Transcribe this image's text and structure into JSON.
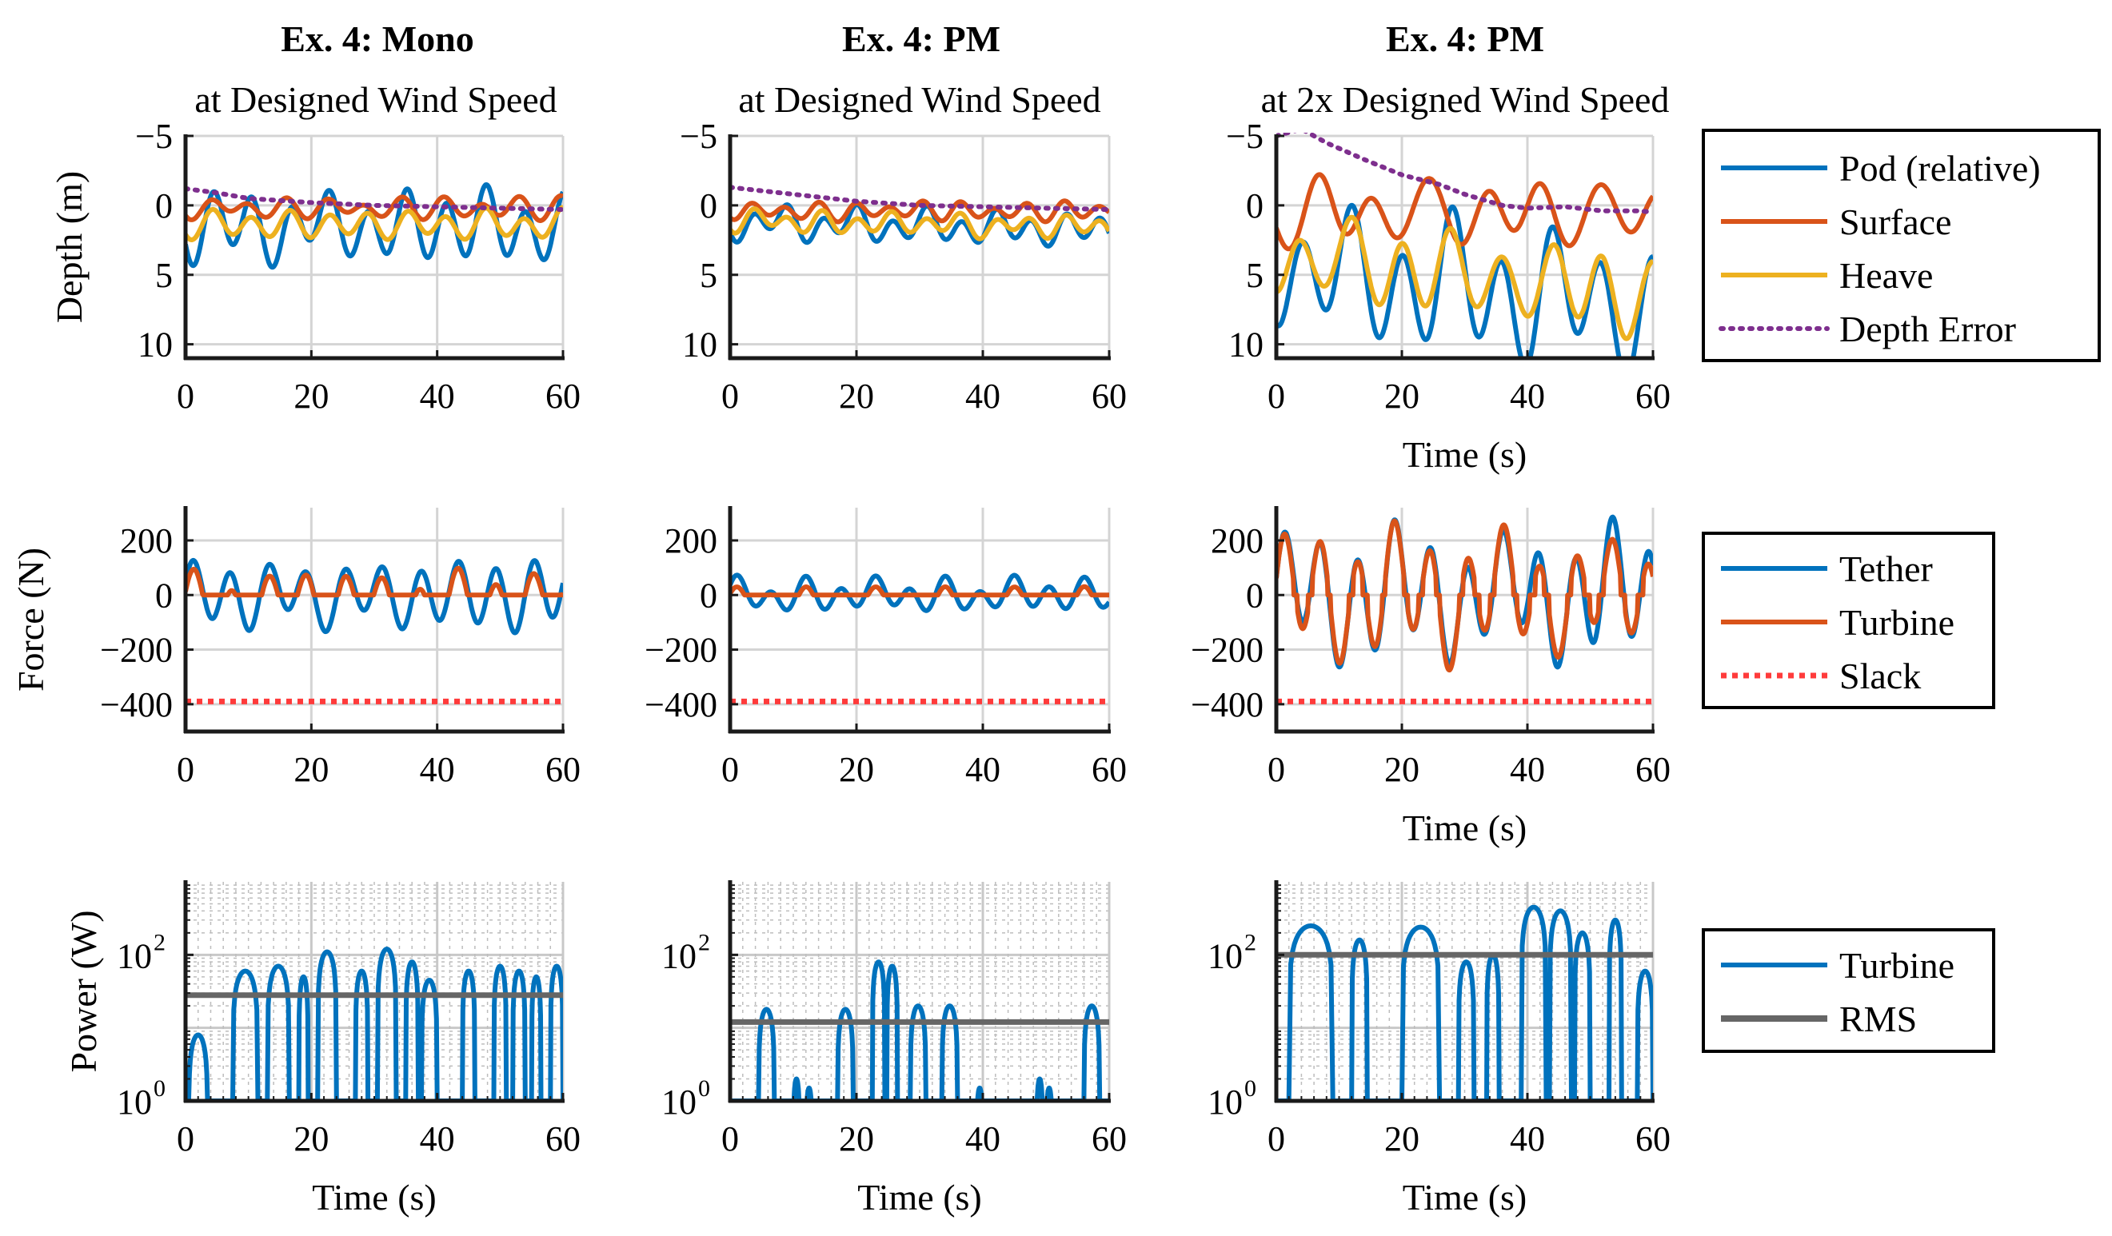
{
  "figure": {
    "columns": [
      {
        "title": "Ex. 4: Mono",
        "subtitle": "at Designed Wind Speed"
      },
      {
        "title": "Ex. 4: PM",
        "subtitle": "at Designed Wind Speed"
      },
      {
        "title": "Ex. 4: PM",
        "subtitle": "at 2x Designed Wind Speed"
      }
    ],
    "legends": {
      "depth": [
        "Pod (relative)",
        "Surface",
        "Heave",
        "Depth Error"
      ],
      "force": [
        "Tether",
        "Turbine",
        "Slack"
      ],
      "power": [
        "Turbine",
        "RMS"
      ]
    },
    "colors": {
      "blue": "#0072BD",
      "orange": "#D95319",
      "yellow": "#EDB120",
      "purple": "#7E2F8E",
      "red": "#FF3B3B",
      "gray": "#666666"
    }
  },
  "chart_data": [
    {
      "type": "line",
      "id": "depth-mono",
      "title": "Ex. 4: Mono",
      "subtitle": "at Designed Wind Speed",
      "xlabel": "",
      "ylabel": "Depth (m)",
      "xlim": [
        0,
        60
      ],
      "ylim": [
        -5,
        11
      ],
      "y_reversed": true,
      "xticks": [
        0,
        20,
        40,
        60
      ],
      "yticks": [
        -5,
        0,
        5,
        10
      ],
      "ytick_labels": [
        "−5",
        "0",
        "5",
        "10"
      ],
      "series": [
        {
          "name": "Pod (relative)",
          "color": "#0072BD",
          "style": "solid",
          "mean": 1.5,
          "amps": [
            2.0,
            0.8
          ],
          "periods": [
            6.2,
            13.5
          ],
          "phases": [
            0.3,
            1.1
          ],
          "seed": 1
        },
        {
          "name": "Surface",
          "color": "#D95319",
          "style": "solid",
          "mean": 0.2,
          "amps": [
            0.6,
            0.3
          ],
          "periods": [
            6.2,
            9.0
          ],
          "phases": [
            0.9,
            0.2
          ],
          "seed": 2
        },
        {
          "name": "Heave",
          "color": "#EDB120",
          "style": "solid",
          "mean": 1.4,
          "amps": [
            0.9,
            0.3
          ],
          "periods": [
            6.2,
            11.0
          ],
          "phases": [
            0.5,
            2.0
          ],
          "seed": 3
        },
        {
          "name": "Depth Error",
          "color": "#7E2F8E",
          "style": "dotted",
          "points": [
            [
              0,
              -1.2
            ],
            [
              5,
              -0.9
            ],
            [
              10,
              -0.5
            ],
            [
              20,
              -0.2
            ],
            [
              30,
              0.0
            ],
            [
              40,
              0.1
            ],
            [
              50,
              0.2
            ],
            [
              60,
              0.3
            ]
          ]
        }
      ]
    },
    {
      "type": "line",
      "id": "depth-pm",
      "title": "Ex. 4: PM",
      "subtitle": "at Designed Wind Speed",
      "xlabel": "",
      "ylabel": "",
      "xlim": [
        0,
        60
      ],
      "ylim": [
        -5,
        11
      ],
      "y_reversed": true,
      "xticks": [
        0,
        20,
        40,
        60
      ],
      "yticks": [
        -5,
        0,
        5,
        10
      ],
      "ytick_labels": [
        "−5",
        "0",
        "5",
        "10"
      ],
      "series": [
        {
          "name": "Pod (relative)",
          "color": "#0072BD",
          "style": "solid",
          "mean": 1.2,
          "amps": [
            1.0,
            0.5
          ],
          "periods": [
            5.5,
            12.0
          ],
          "phases": [
            0.4,
            0.8
          ],
          "trend": 0.6,
          "seed": 4
        },
        {
          "name": "Surface",
          "color": "#D95319",
          "style": "solid",
          "mean": 0.4,
          "amps": [
            0.5,
            0.2
          ],
          "periods": [
            5.5,
            8.0
          ],
          "phases": [
            1.0,
            0.3
          ],
          "seed": 5
        },
        {
          "name": "Heave",
          "color": "#EDB120",
          "style": "solid",
          "mean": 1.1,
          "amps": [
            0.6,
            0.3
          ],
          "periods": [
            5.5,
            10.0
          ],
          "phases": [
            0.6,
            1.5
          ],
          "trend": 0.5,
          "seed": 6
        },
        {
          "name": "Depth Error",
          "color": "#7E2F8E",
          "style": "dotted",
          "points": [
            [
              0,
              -1.3
            ],
            [
              10,
              -0.8
            ],
            [
              20,
              -0.3
            ],
            [
              30,
              0.0
            ],
            [
              40,
              0.1
            ],
            [
              50,
              0.2
            ],
            [
              60,
              0.3
            ]
          ]
        }
      ]
    },
    {
      "type": "line",
      "id": "depth-pm2x",
      "title": "Ex. 4: PM",
      "subtitle": "at 2x Designed Wind Speed",
      "xlabel": "Time (s)",
      "ylabel": "",
      "xlim": [
        0,
        60
      ],
      "ylim": [
        -5,
        11
      ],
      "y_reversed": true,
      "xticks": [
        0,
        20,
        40,
        60
      ],
      "yticks": [
        -5,
        0,
        5,
        10
      ],
      "ytick_labels": [
        "−5",
        "0",
        "5",
        "10"
      ],
      "series": [
        {
          "name": "Pod (relative)",
          "color": "#0072BD",
          "style": "solid",
          "mean": 4.5,
          "amps": [
            3.5,
            1.5
          ],
          "periods": [
            8.0,
            17.0
          ],
          "phases": [
            1.6,
            0.4
          ],
          "trend": 3.0,
          "seed": 7
        },
        {
          "name": "Surface",
          "color": "#D95319",
          "style": "solid",
          "mean": 0.5,
          "amps": [
            1.8,
            0.8
          ],
          "periods": [
            9.0,
            15.0
          ],
          "phases": [
            0.2,
            1.3
          ],
          "seed": 8
        },
        {
          "name": "Heave",
          "color": "#EDB120",
          "style": "solid",
          "mean": 3.5,
          "amps": [
            2.4,
            0.8
          ],
          "periods": [
            8.0,
            17.0
          ],
          "phases": [
            1.6,
            0.4
          ],
          "trend": 3.0,
          "seed": 9
        },
        {
          "name": "Depth Error",
          "color": "#7E2F8E",
          "style": "dotted",
          "points": [
            [
              0,
              -5.0
            ],
            [
              4,
              -5.5
            ],
            [
              8,
              -4.5
            ],
            [
              14,
              -3.3
            ],
            [
              20,
              -2.2
            ],
            [
              26,
              -1.5
            ],
            [
              30,
              -0.8
            ],
            [
              36,
              0.0
            ],
            [
              40,
              0.2
            ],
            [
              46,
              0.1
            ],
            [
              52,
              0.4
            ],
            [
              58,
              0.4
            ],
            [
              60,
              0.5
            ]
          ]
        }
      ]
    },
    {
      "type": "line",
      "id": "force-mono",
      "xlabel": "",
      "ylabel": "Force (N)",
      "xlim": [
        0,
        60
      ],
      "ylim": [
        -500,
        320
      ],
      "y_reversed": false,
      "xticks": [
        0,
        20,
        40,
        60
      ],
      "yticks": [
        -400,
        -200,
        0,
        200
      ],
      "ytick_labels": [
        "−400",
        "−200",
        "0",
        "200"
      ],
      "series": [
        {
          "name": "Tether",
          "color": "#0072BD",
          "style": "solid",
          "mean": 0,
          "amps": [
            105,
            30
          ],
          "periods": [
            6.0,
            14.0
          ],
          "phases": [
            0.2,
            1.0
          ],
          "seed": 10
        },
        {
          "name": "Turbine",
          "color": "#D95319",
          "style": "solid",
          "clip_pos": true,
          "mean": -30,
          "amps": [
            90,
            30
          ],
          "periods": [
            6.0,
            14.0
          ],
          "phases": [
            0.2,
            1.0
          ],
          "seed": 11
        },
        {
          "name": "Slack",
          "color": "#FF3B3B",
          "style": "dotted",
          "points": [
            [
              0,
              -390
            ],
            [
              60,
              -390
            ]
          ]
        }
      ]
    },
    {
      "type": "line",
      "id": "force-pm",
      "xlabel": "",
      "ylabel": "",
      "xlim": [
        0,
        60
      ],
      "ylim": [
        -500,
        320
      ],
      "y_reversed": false,
      "xticks": [
        0,
        20,
        40,
        60
      ],
      "yticks": [
        -400,
        -200,
        0,
        200
      ],
      "ytick_labels": [
        "−400",
        "−200",
        "0",
        "200"
      ],
      "series": [
        {
          "name": "Tether",
          "color": "#0072BD",
          "style": "solid",
          "mean": 0,
          "amps": [
            45,
            25
          ],
          "periods": [
            5.5,
            11.0
          ],
          "phases": [
            0.4,
            0.9
          ],
          "seed": 12
        },
        {
          "name": "Turbine",
          "color": "#D95319",
          "style": "solid",
          "clip_pos": true,
          "mean": -20,
          "amps": [
            35,
            15
          ],
          "periods": [
            5.5,
            11.0
          ],
          "phases": [
            0.4,
            0.9
          ],
          "seed": 13
        },
        {
          "name": "Slack",
          "color": "#FF3B3B",
          "style": "dotted",
          "points": [
            [
              0,
              -390
            ],
            [
              60,
              -390
            ]
          ]
        }
      ]
    },
    {
      "type": "line",
      "id": "force-pm2x",
      "xlabel": "Time (s)",
      "ylabel": "",
      "xlim": [
        0,
        60
      ],
      "ylim": [
        -500,
        320
      ],
      "y_reversed": false,
      "xticks": [
        0,
        20,
        40,
        60
      ],
      "yticks": [
        -400,
        -200,
        0,
        200
      ],
      "ytick_labels": [
        "−400",
        "−200",
        "0",
        "200"
      ],
      "series": [
        {
          "name": "Tether",
          "color": "#0072BD",
          "style": "solid",
          "mean": 0,
          "amps": [
            180,
            70
          ],
          "periods": [
            5.8,
            17.0
          ],
          "phases": [
            0.1,
            0.7
          ],
          "seed": 14
        },
        {
          "name": "Turbine",
          "color": "#D95319",
          "style": "solid",
          "clip_band": true,
          "mean": 0,
          "amps": [
            170,
            70
          ],
          "periods": [
            5.8,
            17.0
          ],
          "phases": [
            0.1,
            0.7
          ],
          "seed": 15
        },
        {
          "name": "Slack",
          "color": "#FF3B3B",
          "style": "dotted",
          "points": [
            [
              0,
              -390
            ],
            [
              60,
              -390
            ]
          ]
        }
      ]
    },
    {
      "type": "line",
      "id": "power-mono",
      "xlabel": "Time (s)",
      "ylabel": "Power (W)",
      "xlim": [
        0,
        60
      ],
      "ylim": [
        1,
        1000
      ],
      "log_y": true,
      "xticks": [
        0,
        20,
        40,
        60
      ],
      "ytick_labels": [
        "10",
        "10"
      ],
      "ytick_exps": [
        "0",
        "2"
      ],
      "series": [
        {
          "name": "Turbine",
          "color": "#0072BD",
          "style": "solid",
          "humps": [
            [
              0.5,
              3.5,
              8
            ],
            [
              7.5,
              11.5,
              60
            ],
            [
              13,
              16.5,
              70
            ],
            [
              18,
              19.5,
              50
            ],
            [
              21,
              24,
              110
            ],
            [
              27,
              29,
              60
            ],
            [
              30.5,
              33.5,
              120
            ],
            [
              35,
              37,
              80
            ],
            [
              37.5,
              40,
              45
            ],
            [
              44,
              46,
              60
            ],
            [
              49,
              51,
              70
            ],
            [
              52,
              54,
              60
            ],
            [
              55,
              56.5,
              50
            ],
            [
              58,
              60,
              70
            ]
          ]
        },
        {
          "name": "RMS",
          "color": "#666666",
          "style": "solid",
          "points": [
            [
              0,
              28
            ],
            [
              60,
              28
            ]
          ]
        }
      ]
    },
    {
      "type": "line",
      "id": "power-pm",
      "xlabel": "Time (s)",
      "ylabel": "",
      "xlim": [
        0,
        60
      ],
      "ylim": [
        1,
        1000
      ],
      "log_y": true,
      "xticks": [
        0,
        20,
        40,
        60
      ],
      "ytick_labels": [
        "10",
        "10"
      ],
      "ytick_exps": [
        "0",
        "2"
      ],
      "series": [
        {
          "name": "Turbine",
          "color": "#0072BD",
          "style": "solid",
          "humps": [
            [
              4.5,
              7,
              18
            ],
            [
              10,
              11,
              2
            ],
            [
              12,
              13,
              1.5
            ],
            [
              17,
              19.5,
              18
            ],
            [
              22.5,
              24.5,
              80
            ],
            [
              24.8,
              26.5,
              70
            ],
            [
              28.5,
              31,
              20
            ],
            [
              33.5,
              36,
              20
            ],
            [
              39,
              40,
              1.5
            ],
            [
              48.5,
              49.5,
              2
            ],
            [
              50,
              51,
              1.5
            ],
            [
              56,
              58.5,
              20
            ]
          ]
        },
        {
          "name": "RMS",
          "color": "#666666",
          "style": "solid",
          "points": [
            [
              0,
              12
            ],
            [
              60,
              12
            ]
          ]
        }
      ]
    },
    {
      "type": "line",
      "id": "power-pm2x",
      "xlabel": "Time (s)",
      "ylabel": "",
      "xlim": [
        0,
        60
      ],
      "ylim": [
        1,
        1000
      ],
      "log_y": true,
      "xticks": [
        0,
        20,
        40,
        60
      ],
      "ytick_labels": [
        "10",
        "10"
      ],
      "ytick_exps": [
        "0",
        "2"
      ],
      "series": [
        {
          "name": "Turbine",
          "color": "#0072BD",
          "style": "solid",
          "humps": [
            [
              2,
              9,
              250
            ],
            [
              12,
              14.5,
              160
            ],
            [
              20,
              26,
              240
            ],
            [
              29,
              31.5,
              80
            ],
            [
              33.5,
              35.5,
              100
            ],
            [
              39,
              43,
              450
            ],
            [
              43.5,
              47,
              400
            ],
            [
              47.5,
              50,
              200
            ],
            [
              53,
              55,
              300
            ],
            [
              57.5,
              60,
              60
            ]
          ]
        },
        {
          "name": "RMS",
          "color": "#666666",
          "style": "solid",
          "points": [
            [
              0,
              100
            ],
            [
              60,
              100
            ]
          ]
        }
      ]
    }
  ]
}
